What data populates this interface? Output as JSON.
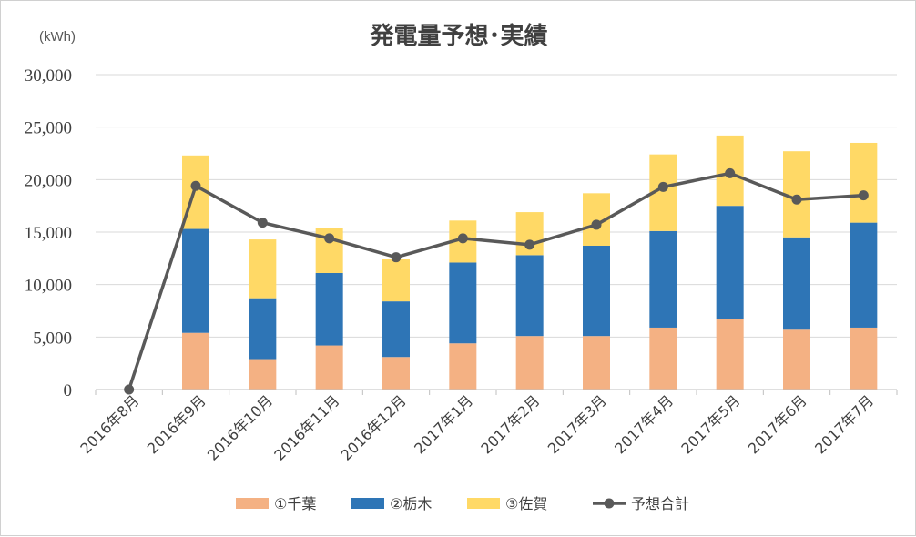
{
  "chart_data": {
    "type": "bar",
    "stacked": true,
    "title": "発電量予想･実績",
    "unit_label": "(kWh)",
    "ylim": [
      0,
      30000
    ],
    "yticks": [
      0,
      5000,
      10000,
      15000,
      20000,
      25000,
      30000
    ],
    "ytick_labels": [
      "0",
      "5,000",
      "10,000",
      "15,000",
      "20,000",
      "25,000",
      "30,000"
    ],
    "grid": true,
    "legend_position": "bottom",
    "categories": [
      "2016年8月",
      "2016年9月",
      "2016年10月",
      "2016年11月",
      "2016年12月",
      "2017年1月",
      "2017年2月",
      "2017年3月",
      "2017年4月",
      "2017年5月",
      "2017年6月",
      "2017年7月"
    ],
    "series": [
      {
        "name": "①千葉",
        "kind": "bar",
        "color": "#F4B183",
        "values": [
          0,
          5400,
          2900,
          4200,
          3100,
          4400,
          5100,
          5100,
          5900,
          6700,
          5700,
          5900
        ]
      },
      {
        "name": "②栃木",
        "kind": "bar",
        "color": "#2E75B6",
        "values": [
          0,
          9900,
          5800,
          6900,
          5300,
          7700,
          7700,
          8600,
          9200,
          10800,
          8800,
          10000
        ]
      },
      {
        "name": "③佐賀",
        "kind": "bar",
        "color": "#FFD966",
        "values": [
          0,
          7000,
          5600,
          4300,
          4000,
          4000,
          4100,
          5000,
          7300,
          6700,
          8200,
          7600
        ]
      },
      {
        "name": "予想合計",
        "kind": "line",
        "color": "#595959",
        "values": [
          0,
          19400,
          15900,
          14400,
          12600,
          14400,
          13800,
          15700,
          19300,
          20600,
          18100,
          18500
        ]
      }
    ]
  }
}
